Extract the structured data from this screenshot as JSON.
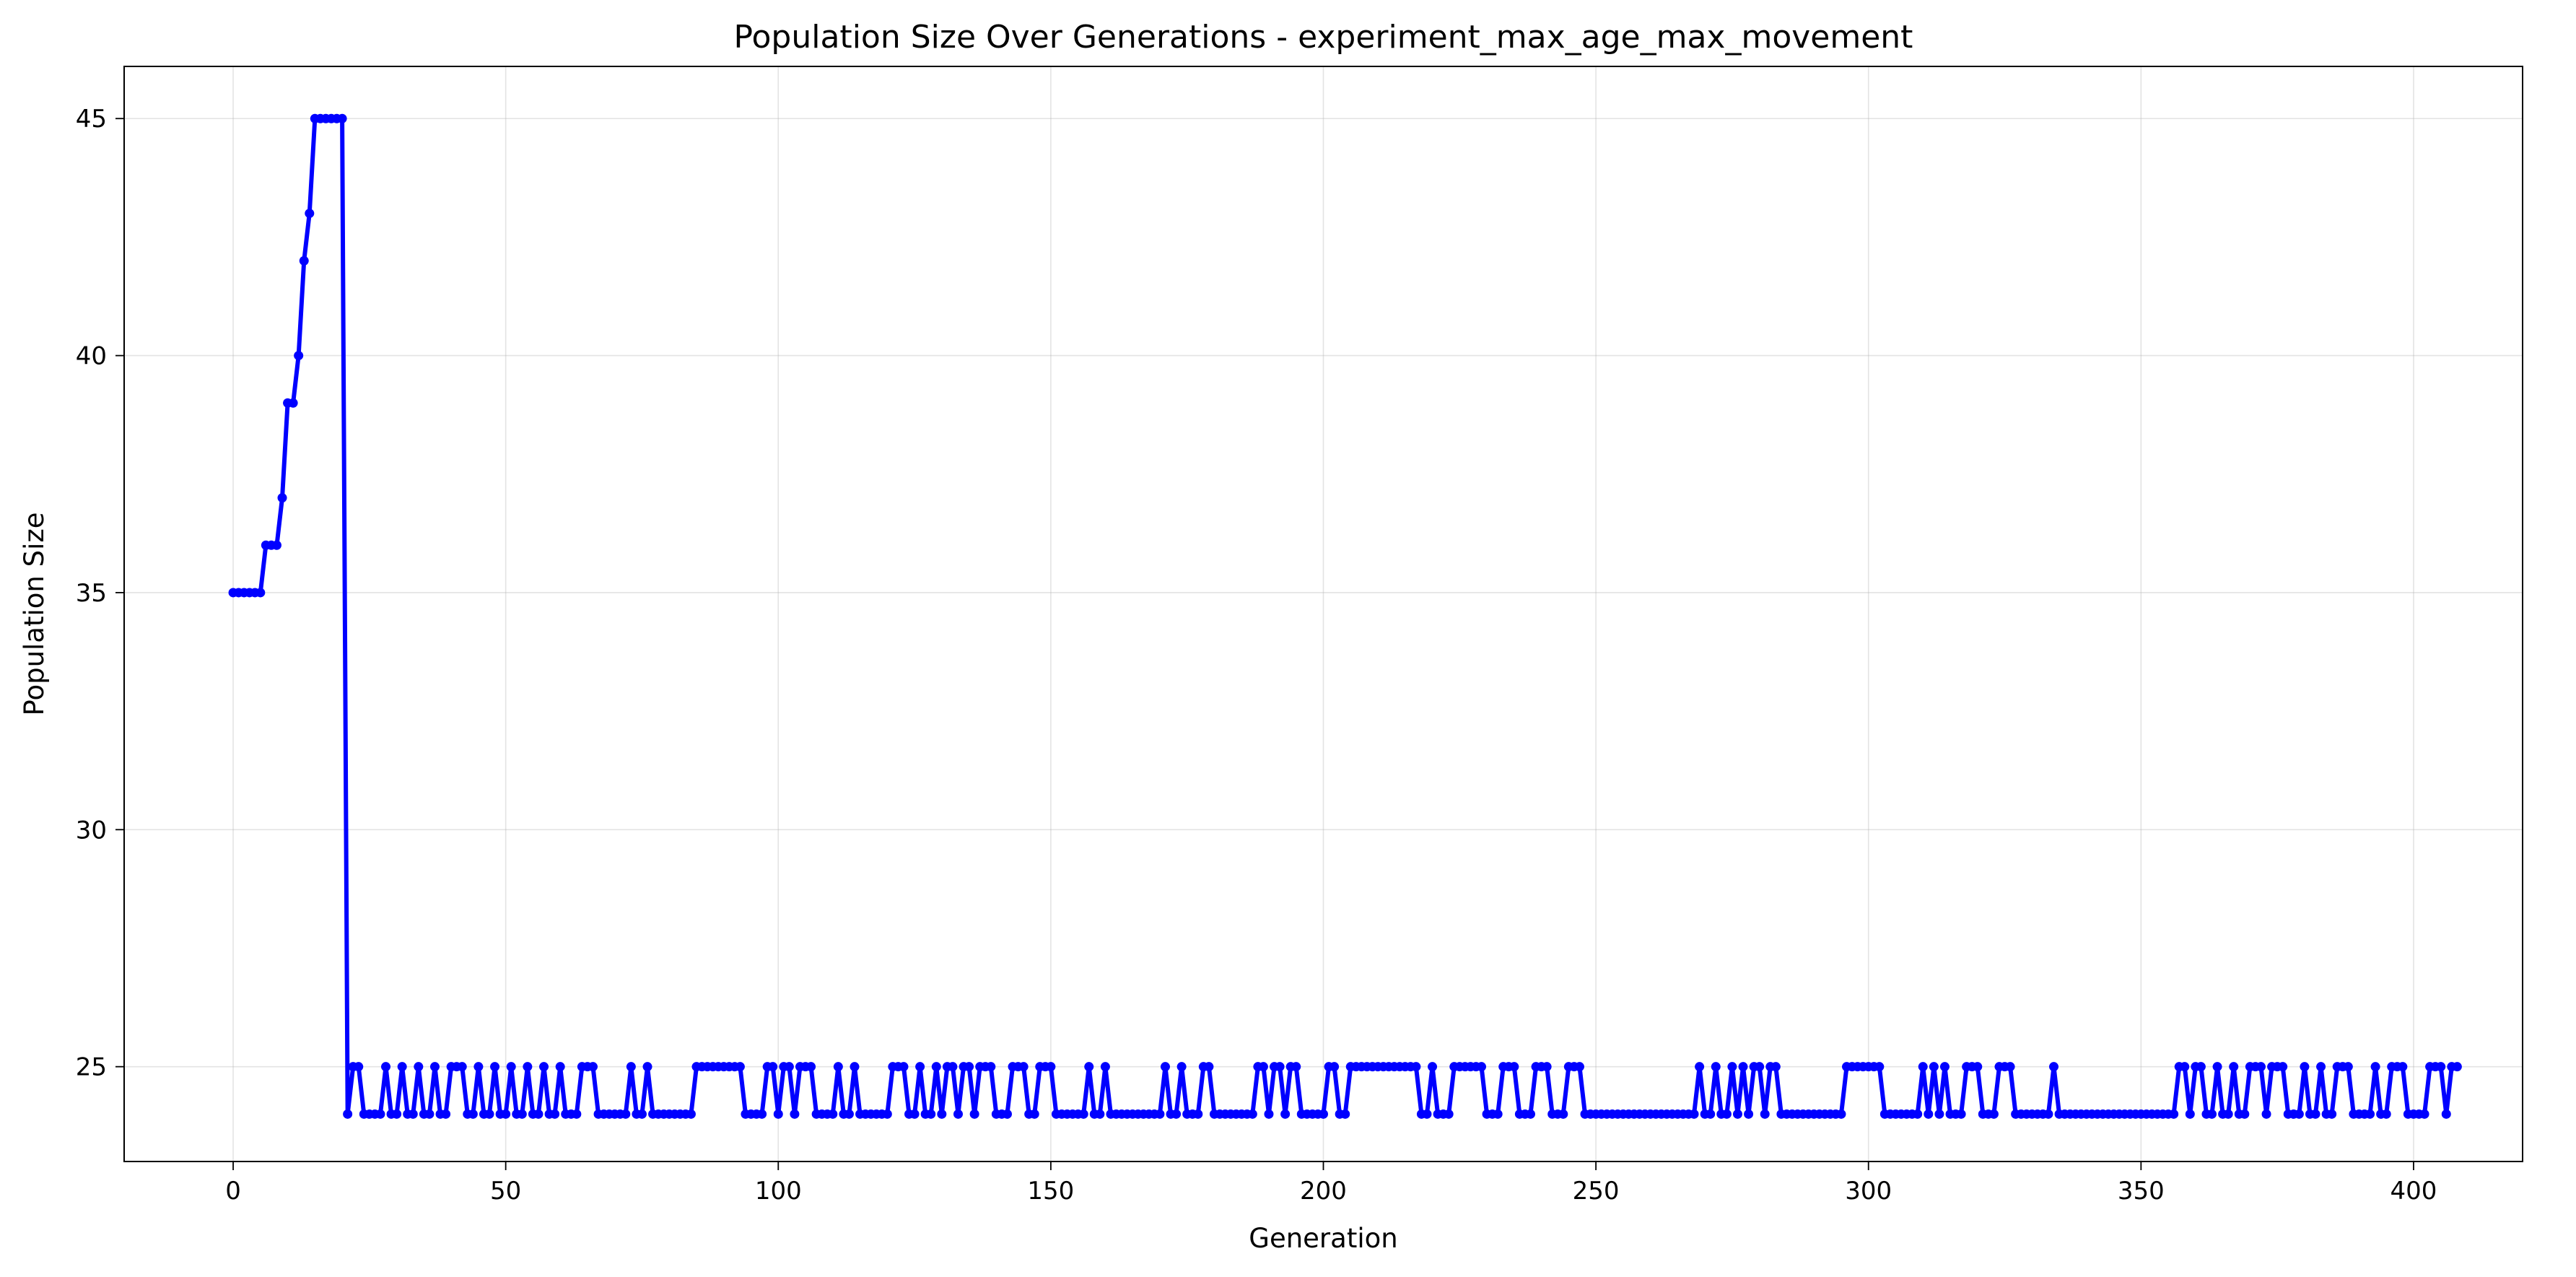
{
  "chart_data": {
    "type": "line",
    "title": "Population Size Over Generations - experiment_max_age_max_movement",
    "xlabel": "Generation",
    "ylabel": "Population Size",
    "xlim": [
      -20,
      420
    ],
    "ylim": [
      23,
      46.1
    ],
    "xticks": [
      0,
      50,
      100,
      150,
      200,
      250,
      300,
      350,
      400
    ],
    "yticks": [
      25,
      30,
      35,
      40,
      45
    ],
    "grid": true,
    "series": [
      {
        "color": "#0000ff",
        "marker": "circle",
        "start_x": 0,
        "values": [
          35,
          35,
          35,
          35,
          35,
          35,
          36,
          36,
          36,
          37,
          39,
          39,
          40,
          42,
          43,
          45,
          45,
          45,
          45,
          45,
          45,
          24,
          25,
          25,
          24,
          24,
          24,
          24,
          25,
          24,
          24,
          25,
          24,
          24,
          25,
          24,
          24,
          25,
          24,
          24,
          25,
          25,
          25,
          24,
          24,
          25,
          24,
          24,
          25,
          24,
          24,
          25,
          24,
          24,
          25,
          24,
          24,
          25,
          24,
          24,
          25,
          24,
          24,
          24,
          25,
          25,
          25,
          24,
          24,
          24,
          24,
          24,
          24,
          25,
          24,
          24,
          25,
          24,
          24,
          24,
          24,
          24,
          24,
          24,
          24,
          25,
          25,
          25,
          25,
          25,
          25,
          25,
          25,
          25,
          24,
          24,
          24,
          24,
          25,
          25,
          24,
          25,
          25,
          24,
          25,
          25,
          25,
          24,
          24,
          24,
          24,
          25,
          24,
          24,
          25,
          24,
          24,
          24,
          24,
          24,
          24,
          25,
          25,
          25,
          24,
          24,
          25,
          24,
          24,
          25,
          24,
          25,
          25,
          24,
          25,
          25,
          24,
          25,
          25,
          25,
          24,
          24,
          24,
          25,
          25,
          25,
          24,
          24,
          25,
          25,
          25,
          24,
          24,
          24,
          24,
          24,
          24,
          25,
          24,
          24,
          25,
          24,
          24,
          24,
          24,
          24,
          24,
          24,
          24,
          24,
          24,
          25,
          24,
          24,
          25,
          24,
          24,
          24,
          25,
          25,
          24,
          24,
          24,
          24,
          24,
          24,
          24,
          24,
          25,
          25,
          24,
          25,
          25,
          24,
          25,
          25,
          24,
          24,
          24,
          24,
          24,
          25,
          25,
          24,
          24,
          25,
          25,
          25,
          25,
          25,
          25,
          25,
          25,
          25,
          25,
          25,
          25,
          25,
          24,
          24,
          25,
          24,
          24,
          24,
          25,
          25,
          25,
          25,
          25,
          25,
          24,
          24,
          24,
          25,
          25,
          25,
          24,
          24,
          24,
          25,
          25,
          25,
          24,
          24,
          24,
          25,
          25,
          25,
          24,
          24,
          24,
          24,
          24,
          24,
          24,
          24,
          24,
          24,
          24,
          24,
          24,
          24,
          24,
          24,
          24,
          24,
          24,
          24,
          24,
          25,
          24,
          24,
          25,
          24,
          24,
          25,
          24,
          25,
          24,
          25,
          25,
          24,
          25,
          25,
          24,
          24,
          24,
          24,
          24,
          24,
          24,
          24,
          24,
          24,
          24,
          24,
          25,
          25,
          25,
          25,
          25,
          25,
          25,
          24,
          24,
          24,
          24,
          24,
          24,
          24,
          25,
          24,
          25,
          24,
          25,
          24,
          24,
          24,
          25,
          25,
          25,
          24,
          24,
          24,
          25,
          25,
          25,
          24,
          24,
          24,
          24,
          24,
          24,
          24,
          25,
          24,
          24,
          24,
          24,
          24,
          24,
          24,
          24,
          24,
          24,
          24,
          24,
          24,
          24,
          24,
          24,
          24,
          24,
          24,
          24,
          24,
          24,
          25,
          25,
          24,
          25,
          25,
          24,
          24,
          25,
          24,
          24,
          25,
          24,
          24,
          25,
          25,
          25,
          24,
          25,
          25,
          25,
          24,
          24,
          24,
          25,
          24,
          24,
          25,
          24,
          24,
          25,
          25,
          25,
          24,
          24,
          24,
          24,
          25,
          24,
          24,
          25,
          25,
          25,
          24,
          24,
          24,
          24,
          25,
          25,
          25,
          24,
          25,
          25
        ]
      }
    ]
  }
}
